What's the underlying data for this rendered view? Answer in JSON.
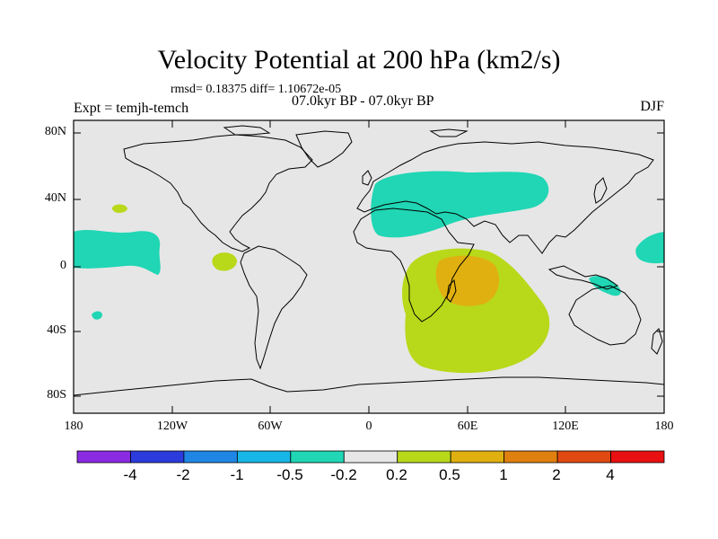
{
  "title": "Velocity Potential at 200 hPa (km2/s)",
  "stats": "rmsd= 0.18375 diff= 1.10672e-05",
  "period": "07.0kyr BP - 07.0kyr BP",
  "expt": "Expt = temjh-temch",
  "season": "DJF",
  "y_ticks": [
    "80N",
    "40N",
    "0",
    "40S",
    "80S"
  ],
  "x_ticks": [
    "180",
    "120W",
    "60W",
    "0",
    "60E",
    "120E",
    "180"
  ],
  "colorbar": {
    "colors": [
      "#8a2be2",
      "#2b3bdc",
      "#1f86e6",
      "#18b6e6",
      "#20d6b4",
      "#e6e6e6",
      "#b8d81a",
      "#e0b010",
      "#e08010",
      "#e04a10",
      "#e81010"
    ],
    "labels": [
      "-4",
      "-2",
      "-1",
      "-0.5",
      "-0.2",
      "0.2",
      "0.5",
      "1",
      "2",
      "4"
    ]
  }
}
